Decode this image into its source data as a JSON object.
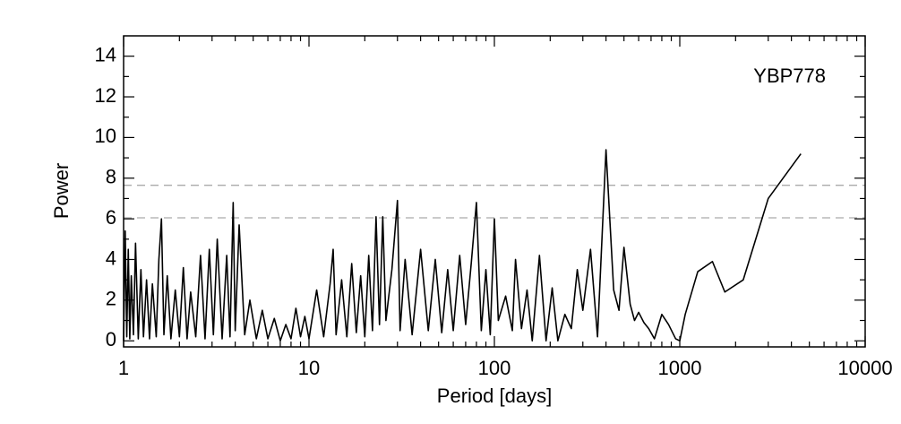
{
  "chart_data": {
    "type": "line",
    "annotation": "YBP778",
    "xlabel": "Period [days]",
    "ylabel": "Power",
    "xscale": "log",
    "xlim": [
      1,
      10000
    ],
    "ylim": [
      -0.3,
      15
    ],
    "xticks": [
      1,
      10,
      100,
      1000,
      10000
    ],
    "yticks": [
      0,
      2,
      4,
      6,
      8,
      10,
      12,
      14
    ],
    "xminorticks": [
      2,
      3,
      4,
      5,
      6,
      7,
      8,
      9,
      20,
      30,
      40,
      50,
      60,
      70,
      80,
      90,
      200,
      300,
      400,
      500,
      600,
      700,
      800,
      900,
      2000,
      3000,
      4000,
      5000,
      6000,
      7000,
      8000,
      9000
    ],
    "yminorticks": [
      1,
      3,
      5,
      7,
      9,
      11,
      13
    ],
    "hlines": [
      7.65,
      6.05
    ],
    "hline_color": "#aaaaaa",
    "x": [
      1,
      1.02,
      1.04,
      1.06,
      1.08,
      1.1,
      1.13,
      1.16,
      1.2,
      1.24,
      1.28,
      1.33,
      1.38,
      1.43,
      1.5,
      1.55,
      1.6,
      1.65,
      1.72,
      1.8,
      1.9,
      2.0,
      2.1,
      2.2,
      2.3,
      2.45,
      2.6,
      2.75,
      2.9,
      3.05,
      3.2,
      3.4,
      3.6,
      3.75,
      3.9,
      4.0,
      4.2,
      4.5,
      4.8,
      5.2,
      5.6,
      6.0,
      6.5,
      7.0,
      7.5,
      8,
      8.5,
      9,
      9.5,
      10,
      11,
      12,
      13,
      13.5,
      14,
      15,
      16,
      17,
      18,
      19,
      20,
      21,
      22,
      23,
      24,
      25,
      26,
      28,
      30,
      31,
      33,
      36,
      40,
      44,
      48,
      52,
      56,
      60,
      65,
      70,
      75,
      80,
      85,
      90,
      95,
      100,
      105,
      115,
      125,
      130,
      140,
      150,
      160,
      175,
      190,
      205,
      220,
      240,
      260,
      280,
      300,
      330,
      360,
      400,
      440,
      470,
      500,
      540,
      570,
      600,
      640,
      680,
      730,
      800,
      870,
      950,
      1000,
      1070,
      1250,
      1500,
      1750,
      2200,
      3000,
      4500
    ],
    "series": [
      {
        "color": "#000000",
        "values": [
          0,
          5.4,
          0.2,
          4.5,
          0.1,
          3.2,
          0.3,
          4.8,
          0.1,
          3.5,
          0.2,
          3.0,
          0.1,
          2.8,
          0.2,
          4.0,
          6.0,
          0.3,
          3.2,
          0.1,
          2.5,
          0.2,
          3.6,
          0.1,
          2.4,
          0.2,
          4.2,
          0.1,
          4.5,
          0.3,
          5.0,
          0.1,
          4.2,
          0.2,
          6.8,
          0.5,
          5.7,
          0.3,
          2.0,
          0.1,
          1.5,
          0.1,
          1.1,
          0.0,
          0.8,
          0.1,
          1.6,
          0.2,
          1.2,
          0.1,
          2.5,
          0.2,
          2.8,
          4.5,
          0.3,
          3.0,
          0.2,
          3.8,
          0.4,
          3.2,
          0.2,
          4.2,
          0.5,
          6.1,
          0.8,
          6.1,
          1.0,
          3.5,
          6.9,
          0.5,
          4.0,
          0.3,
          4.5,
          0.5,
          4.0,
          0.4,
          3.5,
          0.5,
          4.2,
          0.8,
          3.8,
          6.8,
          0.5,
          3.5,
          0.3,
          6.0,
          1.0,
          2.2,
          0.5,
          4.0,
          0.6,
          2.5,
          0.0,
          4.2,
          0.0,
          2.6,
          0.0,
          1.3,
          0.6,
          3.5,
          1.5,
          4.5,
          0.2,
          9.4,
          2.5,
          1.5,
          4.6,
          1.8,
          1.0,
          1.4,
          0.9,
          0.6,
          0.1,
          1.3,
          0.8,
          0.1,
          0.0,
          1.3,
          3.4,
          3.9,
          2.4,
          3.0,
          7.0,
          9.2
        ]
      }
    ]
  }
}
